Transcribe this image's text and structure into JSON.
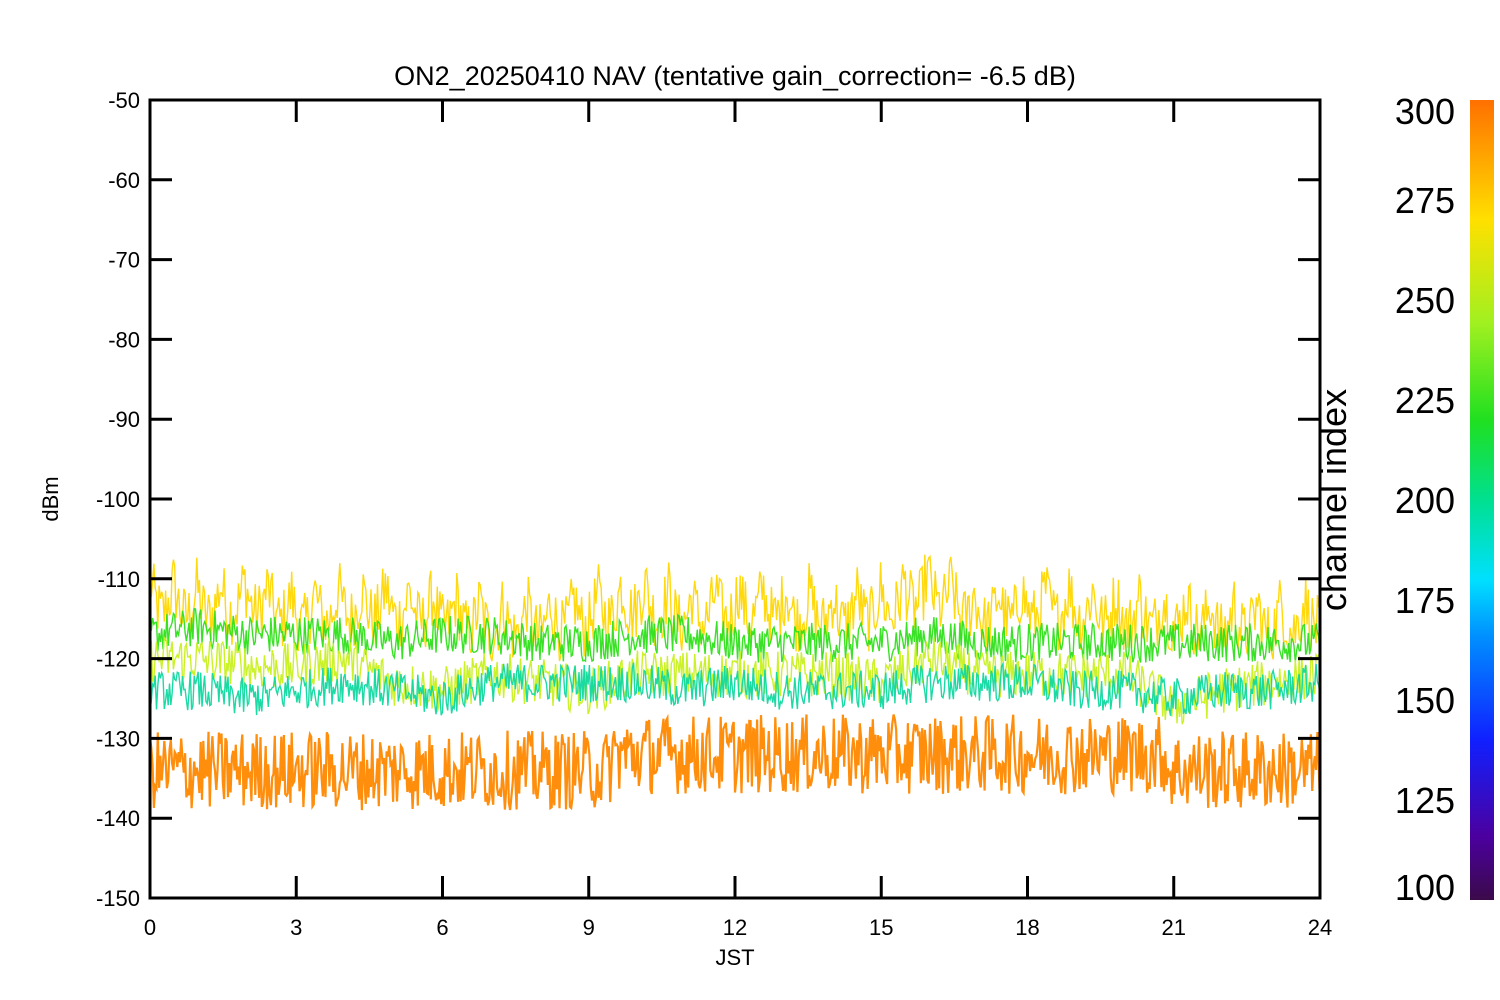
{
  "chart_data": {
    "type": "line",
    "title": "ON2_20250410 NAV (tentative gain_correction= -6.5 dB)",
    "xlabel": "JST",
    "ylabel": "dBm",
    "xlim": [
      0,
      24
    ],
    "ylim": [
      -150,
      -50
    ],
    "xticks": [
      "0",
      "3",
      "6",
      "9",
      "12",
      "15",
      "18",
      "21",
      "24"
    ],
    "yticks": [
      "-50",
      "-60",
      "-70",
      "-80",
      "-90",
      "-100",
      "-110",
      "-120",
      "-130",
      "-140",
      "-150"
    ],
    "grid": false,
    "colorbar": {
      "label": "channel index",
      "range": [
        100,
        300
      ],
      "ticks": [
        "300",
        "275",
        "250",
        "225",
        "200",
        "175",
        "150",
        "125",
        "100"
      ]
    },
    "series": [
      {
        "channel": 268,
        "color": "#ffd700",
        "x": [
          0,
          1,
          2,
          3,
          4,
          5,
          6,
          7,
          8,
          9,
          10,
          11,
          12,
          13,
          14,
          15,
          16,
          17,
          18,
          19,
          20,
          21,
          22,
          23,
          24
        ],
        "y": [
          -112,
          -113,
          -112,
          -114,
          -113,
          -113,
          -114,
          -115,
          -115,
          -114,
          -112,
          -114,
          -113,
          -113,
          -114,
          -113,
          -111,
          -114,
          -113,
          -113,
          -114,
          -114,
          -115,
          -115,
          -114
        ]
      },
      {
        "channel": 240,
        "color": "#2ee01a",
        "x": [
          0,
          1,
          2,
          3,
          4,
          5,
          6,
          7,
          8,
          9,
          10,
          11,
          12,
          13,
          14,
          15,
          16,
          17,
          18,
          19,
          20,
          21,
          22,
          23,
          24
        ],
        "y": [
          -117,
          -116,
          -117,
          -117,
          -117,
          -118,
          -117,
          -117,
          -118,
          -118,
          -117,
          -117,
          -118,
          -118,
          -118,
          -118,
          -117,
          -118,
          -118,
          -118,
          -118,
          -118,
          -118,
          -118,
          -118
        ]
      },
      {
        "channel": 258,
        "color": "#c8f01e",
        "x": [
          0,
          1,
          2,
          3,
          4,
          5,
          6,
          7,
          8,
          9,
          10,
          11,
          12,
          13,
          14,
          15,
          16,
          17,
          18,
          19,
          20,
          21,
          22,
          23,
          24
        ],
        "y": [
          -120,
          -120,
          -121,
          -121,
          -120,
          -123,
          -124,
          -122,
          -123,
          -124,
          -122,
          -122,
          -122,
          -122,
          -122,
          -123,
          -120,
          -122,
          -122,
          -122,
          -122,
          -126,
          -124,
          -123,
          -122
        ]
      },
      {
        "channel": 195,
        "color": "#10d8a0",
        "x": [
          0,
          1,
          2,
          3,
          4,
          5,
          6,
          7,
          8,
          9,
          10,
          11,
          12,
          13,
          14,
          15,
          16,
          17,
          18,
          19,
          20,
          21,
          22,
          23,
          24
        ],
        "y": [
          -124,
          -124,
          -125,
          -124,
          -123,
          -124,
          -125,
          -123,
          -123,
          -123,
          -123,
          -124,
          -123,
          -124,
          -124,
          -124,
          -123,
          -123,
          -123,
          -124,
          -124,
          -125,
          -124,
          -124,
          -123
        ]
      },
      {
        "channel": 292,
        "color": "#ff8800",
        "x": [
          0,
          1,
          2,
          3,
          4,
          5,
          6,
          7,
          8,
          9,
          9.4,
          9.5,
          10,
          11,
          12,
          13,
          14,
          15,
          16,
          17,
          18,
          19,
          20,
          20.8,
          20.9,
          21,
          22,
          23,
          24
        ],
        "y": [
          -134,
          -134,
          -134,
          -134,
          -134,
          -134,
          -134,
          -134,
          -134,
          -134,
          -134,
          -132,
          -132,
          -132,
          -132,
          -132,
          -132,
          -132,
          -132,
          -132,
          -132,
          -132,
          -132,
          -132,
          -134,
          -134,
          -134,
          -134,
          -134
        ]
      }
    ]
  }
}
